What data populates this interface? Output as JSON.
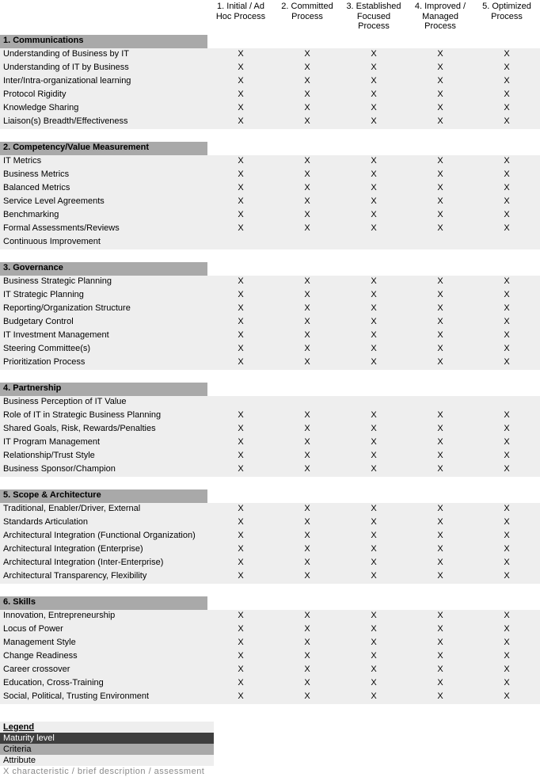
{
  "columns": [
    {
      "line1": "1. Initial / Ad",
      "line2": "Hoc Process"
    },
    {
      "line1": "2. Committed",
      "line2": "Process"
    },
    {
      "line1": "3. Established",
      "line2": "Focused Process"
    },
    {
      "line1": "4. Improved /",
      "line2": "Managed Process"
    },
    {
      "line1": "5. Optimized",
      "line2": "Process"
    }
  ],
  "sections": [
    {
      "title": "1. Communications",
      "rows": [
        {
          "label": "Understanding of Business by IT",
          "marks": [
            "X",
            "X",
            "X",
            "X",
            "X"
          ]
        },
        {
          "label": "Understanding of IT by Business",
          "marks": [
            "X",
            "X",
            "X",
            "X",
            "X"
          ]
        },
        {
          "label": "Inter/Intra-organizational learning",
          "marks": [
            "X",
            "X",
            "X",
            "X",
            "X"
          ]
        },
        {
          "label": "Protocol Rigidity",
          "marks": [
            "X",
            "X",
            "X",
            "X",
            "X"
          ]
        },
        {
          "label": "Knowledge Sharing",
          "marks": [
            "X",
            "X",
            "X",
            "X",
            "X"
          ]
        },
        {
          "label": "Liaison(s) Breadth/Effectiveness",
          "marks": [
            "X",
            "X",
            "X",
            "X",
            "X"
          ]
        }
      ]
    },
    {
      "title": "2. Competency/Value Measurement",
      "rows": [
        {
          "label": "IT Metrics",
          "marks": [
            "X",
            "X",
            "X",
            "X",
            "X"
          ]
        },
        {
          "label": "Business Metrics",
          "marks": [
            "X",
            "X",
            "X",
            "X",
            "X"
          ]
        },
        {
          "label": "Balanced Metrics",
          "marks": [
            "X",
            "X",
            "X",
            "X",
            "X"
          ]
        },
        {
          "label": "Service Level Agreements",
          "marks": [
            "X",
            "X",
            "X",
            "X",
            "X"
          ]
        },
        {
          "label": "Benchmarking",
          "marks": [
            "X",
            "X",
            "X",
            "X",
            "X"
          ]
        },
        {
          "label": "Formal Assessments/Reviews",
          "marks": [
            "X",
            "X",
            "X",
            "X",
            "X"
          ]
        },
        {
          "label": "Continuous Improvement",
          "marks": [
            "",
            "",
            "",
            "",
            ""
          ]
        }
      ]
    },
    {
      "title": "3. Governance",
      "rows": [
        {
          "label": "Business Strategic Planning",
          "marks": [
            "X",
            "X",
            "X",
            "X",
            "X"
          ]
        },
        {
          "label": "IT Strategic Planning",
          "marks": [
            "X",
            "X",
            "X",
            "X",
            "X"
          ]
        },
        {
          "label": "Reporting/Organization Structure",
          "marks": [
            "X",
            "X",
            "X",
            "X",
            "X"
          ]
        },
        {
          "label": "Budgetary Control",
          "marks": [
            "X",
            "X",
            "X",
            "X",
            "X"
          ]
        },
        {
          "label": "IT Investment Management",
          "marks": [
            "X",
            "X",
            "X",
            "X",
            "X"
          ]
        },
        {
          "label": "Steering Committee(s)",
          "marks": [
            "X",
            "X",
            "X",
            "X",
            "X"
          ]
        },
        {
          "label": "Prioritization Process",
          "marks": [
            "X",
            "X",
            "X",
            "X",
            "X"
          ]
        }
      ]
    },
    {
      "title": "4. Partnership",
      "rows": [
        {
          "label": "Business Perception of IT Value",
          "marks": [
            "",
            "",
            "",
            "",
            ""
          ]
        },
        {
          "label": "Role of IT in Strategic Business Planning",
          "marks": [
            "X",
            "X",
            "X",
            "X",
            "X"
          ]
        },
        {
          "label": "Shared Goals, Risk, Rewards/Penalties",
          "marks": [
            "X",
            "X",
            "X",
            "X",
            "X"
          ]
        },
        {
          "label": "IT Program Management",
          "marks": [
            "X",
            "X",
            "X",
            "X",
            "X"
          ]
        },
        {
          "label": "Relationship/Trust Style",
          "marks": [
            "X",
            "X",
            "X",
            "X",
            "X"
          ]
        },
        {
          "label": "Business Sponsor/Champion",
          "marks": [
            "X",
            "X",
            "X",
            "X",
            "X"
          ]
        }
      ]
    },
    {
      "title": "5. Scope & Architecture",
      "rows": [
        {
          "label": "Traditional, Enabler/Driver, External",
          "marks": [
            "X",
            "X",
            "X",
            "X",
            "X"
          ]
        },
        {
          "label": "Standards Articulation",
          "marks": [
            "X",
            "X",
            "X",
            "X",
            "X"
          ]
        },
        {
          "label": "Architectural Integration (Functional Organization)",
          "marks": [
            "X",
            "X",
            "X",
            "X",
            "X"
          ]
        },
        {
          "label": "Architectural Integration (Enterprise)",
          "marks": [
            "X",
            "X",
            "X",
            "X",
            "X"
          ]
        },
        {
          "label": "Architectural Integration (Inter-Enterprise)",
          "marks": [
            "X",
            "X",
            "X",
            "X",
            "X"
          ]
        },
        {
          "label": "Architectural Transparency, Flexibility",
          "marks": [
            "X",
            "X",
            "X",
            "X",
            "X"
          ]
        }
      ]
    },
    {
      "title": "6. Skills",
      "rows": [
        {
          "label": "Innovation, Entrepreneurship",
          "marks": [
            "X",
            "X",
            "X",
            "X",
            "X"
          ]
        },
        {
          "label": "Locus of Power",
          "marks": [
            "X",
            "X",
            "X",
            "X",
            "X"
          ]
        },
        {
          "label": "Management Style",
          "marks": [
            "X",
            "X",
            "X",
            "X",
            "X"
          ]
        },
        {
          "label": "Change Readiness",
          "marks": [
            "X",
            "X",
            "X",
            "X",
            "X"
          ]
        },
        {
          "label": "Career crossover",
          "marks": [
            "X",
            "X",
            "X",
            "X",
            "X"
          ]
        },
        {
          "label": "Education, Cross-Training",
          "marks": [
            "X",
            "X",
            "X",
            "X",
            "X"
          ]
        },
        {
          "label": "Social, Political, Trusting Environment",
          "marks": [
            "X",
            "X",
            "X",
            "X",
            "X"
          ]
        }
      ]
    }
  ],
  "legend": {
    "title": "Legend",
    "maturity": "Maturity level",
    "criteria": "Criteria",
    "attribute": "Attribute",
    "footer": "X  characteristic / brief description / assessment"
  },
  "style": {
    "section_bg": "#a9a9a9",
    "row_bg": "#eeeeee",
    "legend_ml_bg": "#3e3e3e",
    "legend_ml_fg": "#ffffff"
  }
}
